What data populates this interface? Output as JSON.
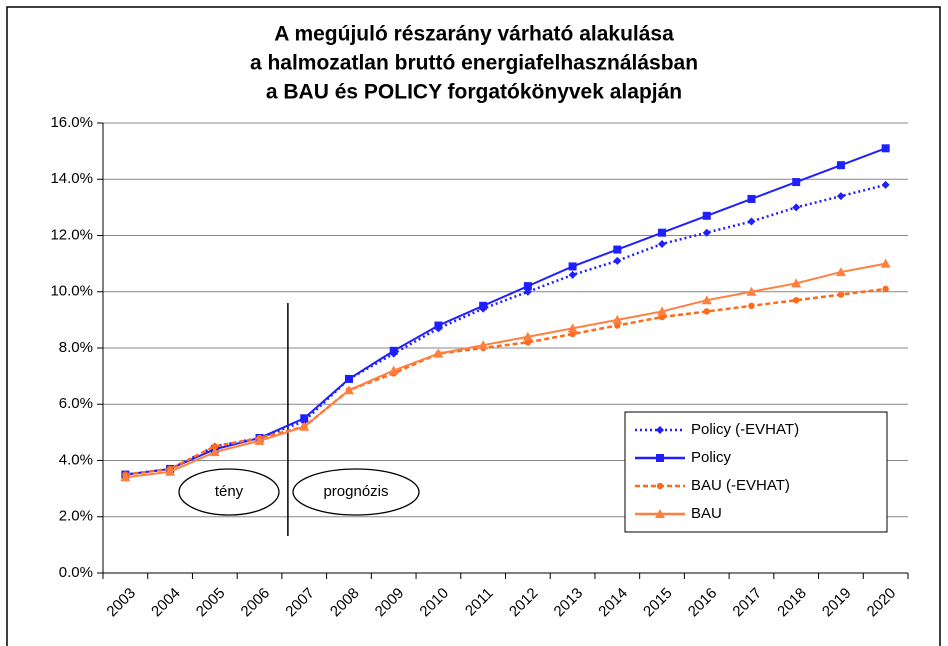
{
  "chart_data": {
    "type": "line",
    "title": [
      "A megújuló részarány várható alakulása",
      "a halmozatlan bruttó energiafelhasználásban",
      "a BAU és POLICY forgatókönyvek alapján"
    ],
    "categories": [
      "2003",
      "2004",
      "2005",
      "2006",
      "2007",
      "2008",
      "2009",
      "2010",
      "2011",
      "2012",
      "2013",
      "2014",
      "2015",
      "2016",
      "2017",
      "2018",
      "2019",
      "2020"
    ],
    "series": [
      {
        "name": "Policy (-EVHAT)",
        "color": "#1f1fff",
        "style": "dotted",
        "marker": "diamond",
        "values": [
          3.5,
          3.7,
          4.5,
          4.8,
          5.4,
          6.9,
          7.8,
          8.7,
          9.4,
          10.0,
          10.6,
          11.1,
          11.7,
          12.1,
          12.5,
          13.0,
          13.4,
          13.8
        ]
      },
      {
        "name": "Policy",
        "color": "#1f1fff",
        "style": "solid",
        "marker": "square",
        "values": [
          3.5,
          3.7,
          4.4,
          4.8,
          5.5,
          6.9,
          7.9,
          8.8,
          9.5,
          10.2,
          10.9,
          11.5,
          12.1,
          12.7,
          13.3,
          13.9,
          14.5,
          15.1
        ]
      },
      {
        "name": "BAU (-EVHAT)",
        "color": "#ff6a1a",
        "style": "dashed",
        "marker": "circle",
        "values": [
          3.5,
          3.7,
          4.5,
          4.8,
          5.2,
          6.5,
          7.1,
          7.8,
          8.0,
          8.2,
          8.5,
          8.8,
          9.1,
          9.3,
          9.5,
          9.7,
          9.9,
          10.1
        ]
      },
      {
        "name": "BAU",
        "color": "#ff7f3f",
        "style": "solid",
        "marker": "triangle",
        "values": [
          3.4,
          3.6,
          4.3,
          4.7,
          5.2,
          6.5,
          7.2,
          7.8,
          8.1,
          8.4,
          8.7,
          9.0,
          9.3,
          9.7,
          10.0,
          10.3,
          10.7,
          11.0
        ]
      }
    ],
    "ylim": [
      0,
      16
    ],
    "yticks": [
      {
        "value": 0,
        "label": "0.0%"
      },
      {
        "value": 2,
        "label": "2.0%"
      },
      {
        "value": 4,
        "label": "4.0%"
      },
      {
        "value": 6,
        "label": "6.0%"
      },
      {
        "value": 8,
        "label": "8.0%"
      },
      {
        "value": 10,
        "label": "10.0%"
      },
      {
        "value": 12,
        "label": "12.0%"
      },
      {
        "value": 14,
        "label": "14.0%"
      },
      {
        "value": 16,
        "label": "16.0%"
      }
    ],
    "grid": true,
    "legend": "lower right",
    "annotations": [
      "tény",
      "prognózis"
    ]
  }
}
